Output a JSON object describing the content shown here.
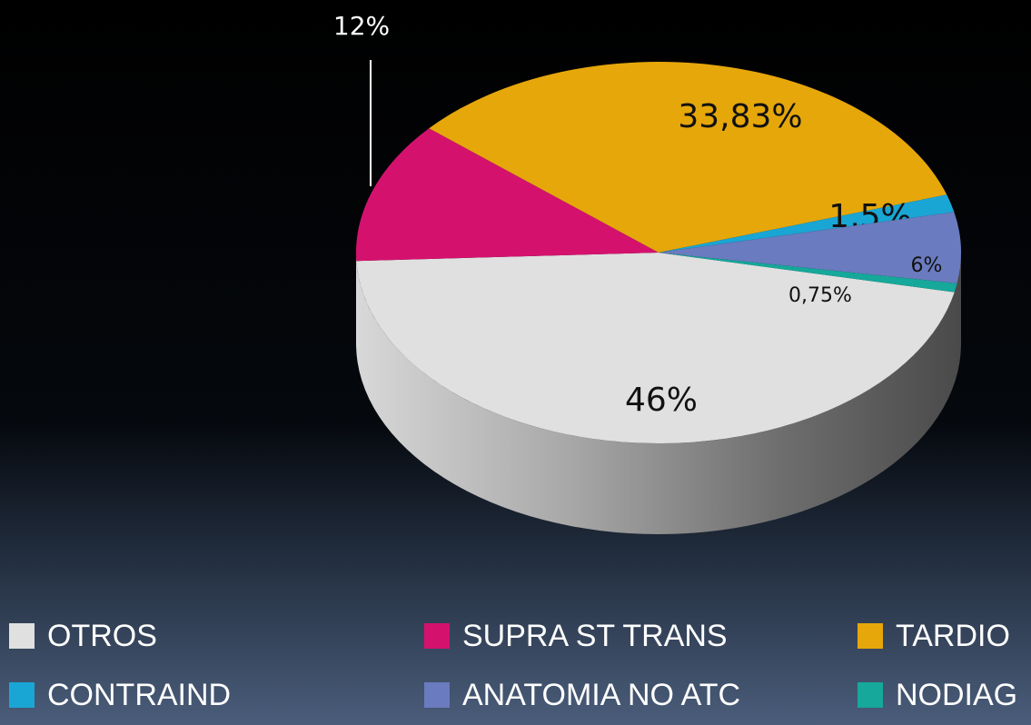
{
  "chart_data": {
    "type": "pie",
    "categories": [
      "OTROS",
      "SUPRA ST TRANS",
      "TARDIO",
      "CONTRAIND",
      "ANATOMIA NO ATC",
      "NODIAG"
    ],
    "values": [
      46,
      12,
      33.83,
      1.5,
      6,
      0.75
    ],
    "value_labels": [
      "46%",
      "12%",
      "33,83%",
      "1,5%",
      "6%",
      "0,75%"
    ],
    "colors": [
      "#e0e0e0",
      "#d4126e",
      "#e6a70a",
      "#1aa6d4",
      "#6a7bbf",
      "#16a89a"
    ],
    "legend": "bottom"
  }
}
